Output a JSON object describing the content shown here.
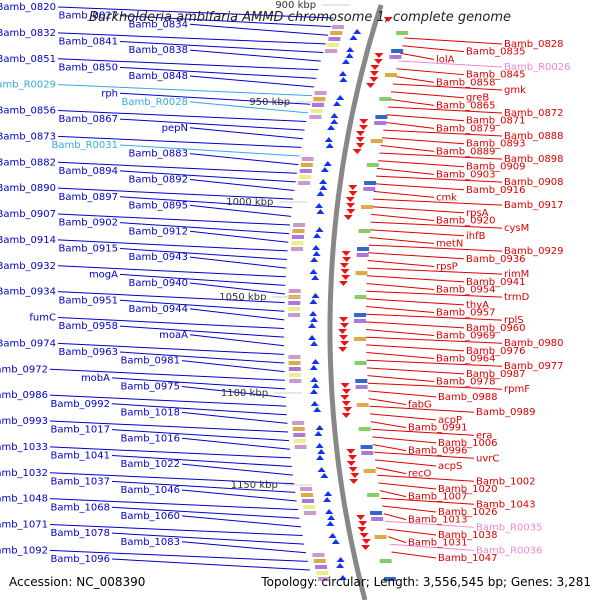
{
  "title": "Burkholderia ambifaria AMMD chromosome 1, complete genome",
  "footer": {
    "accession": "Accession: NC_008390",
    "topology": "Topology: circular; Length: 3,556,545 bp; Genes: 3,281"
  },
  "colors": {
    "left_gene": "#0000cc",
    "right_gene": "#dd0000",
    "left_rna": "#33aadd",
    "right_rna": "#ee88cc",
    "backbone": "#888888"
  },
  "scale_labels": [
    "900 kbp",
    "950 kbp",
    "1000 kbp",
    "1050 kbp",
    "1100 kbp",
    "1150 kbp"
  ],
  "left_labels": [
    {
      "text": "Bamb_0820",
      "type": "gene"
    },
    {
      "text": "Bamb_0827",
      "type": "gene"
    },
    {
      "text": "Bamb_0834",
      "type": "gene"
    },
    {
      "text": "Bamb_0832",
      "type": "gene"
    },
    {
      "text": "Bamb_0841",
      "type": "gene"
    },
    {
      "text": "Bamb_0838",
      "type": "gene"
    },
    {
      "text": "Bamb_0851",
      "type": "gene"
    },
    {
      "text": "Bamb_0850",
      "type": "gene"
    },
    {
      "text": "Bamb_0848",
      "type": "gene"
    },
    {
      "text": "Bamb_R0029",
      "type": "rna"
    },
    {
      "text": "rph",
      "type": "gene"
    },
    {
      "text": "Bamb_R0028",
      "type": "rna"
    },
    {
      "text": "Bamb_0856",
      "type": "gene"
    },
    {
      "text": "Bamb_0867",
      "type": "gene"
    },
    {
      "text": "pepN",
      "type": "gene"
    },
    {
      "text": "Bamb_0873",
      "type": "gene"
    },
    {
      "text": "Bamb_R0031",
      "type": "rna"
    },
    {
      "text": "Bamb_0883",
      "type": "gene"
    },
    {
      "text": "Bamb_0882",
      "type": "gene"
    },
    {
      "text": "Bamb_0894",
      "type": "gene"
    },
    {
      "text": "Bamb_0892",
      "type": "gene"
    },
    {
      "text": "Bamb_0890",
      "type": "gene"
    },
    {
      "text": "Bamb_0897",
      "type": "gene"
    },
    {
      "text": "Bamb_0895",
      "type": "gene"
    },
    {
      "text": "Bamb_0907",
      "type": "gene"
    },
    {
      "text": "Bamb_0902",
      "type": "gene"
    },
    {
      "text": "Bamb_0912",
      "type": "gene"
    },
    {
      "text": "Bamb_0914",
      "type": "gene"
    },
    {
      "text": "Bamb_0915",
      "type": "gene"
    },
    {
      "text": "Bamb_0943",
      "type": "gene"
    },
    {
      "text": "Bamb_0932",
      "type": "gene"
    },
    {
      "text": "mogA",
      "type": "gene"
    },
    {
      "text": "Bamb_0940",
      "type": "gene"
    },
    {
      "text": "Bamb_0934",
      "type": "gene"
    },
    {
      "text": "Bamb_0951",
      "type": "gene"
    },
    {
      "text": "Bamb_0944",
      "type": "gene"
    },
    {
      "text": "fumC",
      "type": "gene"
    },
    {
      "text": "Bamb_0958",
      "type": "gene"
    },
    {
      "text": "moaA",
      "type": "gene"
    },
    {
      "text": "Bamb_0974",
      "type": "gene"
    },
    {
      "text": "Bamb_0963",
      "type": "gene"
    },
    {
      "text": "Bamb_0981",
      "type": "gene"
    },
    {
      "text": "Bamb_0972",
      "type": "gene"
    },
    {
      "text": "mobA",
      "type": "gene"
    },
    {
      "text": "Bamb_0975",
      "type": "gene"
    },
    {
      "text": "Bamb_0986",
      "type": "gene"
    },
    {
      "text": "Bamb_0992",
      "type": "gene"
    },
    {
      "text": "Bamb_1018",
      "type": "gene"
    },
    {
      "text": "Bamb_0993",
      "type": "gene"
    },
    {
      "text": "Bamb_1017",
      "type": "gene"
    },
    {
      "text": "Bamb_1016",
      "type": "gene"
    },
    {
      "text": "Bamb_1033",
      "type": "gene"
    },
    {
      "text": "Bamb_1041",
      "type": "gene"
    },
    {
      "text": "Bamb_1022",
      "type": "gene"
    },
    {
      "text": "Bamb_1032",
      "type": "gene"
    },
    {
      "text": "Bamb_1037",
      "type": "gene"
    },
    {
      "text": "Bamb_1046",
      "type": "gene"
    },
    {
      "text": "Bamb_1048",
      "type": "gene"
    },
    {
      "text": "Bamb_1068",
      "type": "gene"
    },
    {
      "text": "Bamb_1060",
      "type": "gene"
    },
    {
      "text": "Bamb_1071",
      "type": "gene"
    },
    {
      "text": "Bamb_1078",
      "type": "gene"
    },
    {
      "text": "Bamb_1083",
      "type": "gene"
    },
    {
      "text": "Bamb_1092",
      "type": "gene"
    },
    {
      "text": "Bamb_1096",
      "type": "gene"
    }
  ],
  "right_labels": [
    {
      "text": "Bamb_0828",
      "type": "gene"
    },
    {
      "text": "Bamb_0835",
      "type": "gene"
    },
    {
      "text": "lolA",
      "type": "gene"
    },
    {
      "text": "Bamb_R0026",
      "type": "rna"
    },
    {
      "text": "Bamb_0845",
      "type": "gene"
    },
    {
      "text": "Bamb_0858",
      "type": "gene"
    },
    {
      "text": "gmk",
      "type": "gene"
    },
    {
      "text": "greB",
      "type": "gene"
    },
    {
      "text": "Bamb_0865",
      "type": "gene"
    },
    {
      "text": "Bamb_0872",
      "type": "gene"
    },
    {
      "text": "Bamb_0871",
      "type": "gene"
    },
    {
      "text": "Bamb_0879",
      "type": "gene"
    },
    {
      "text": "Bamb_0888",
      "type": "gene"
    },
    {
      "text": "Bamb_0893",
      "type": "gene"
    },
    {
      "text": "Bamb_0889",
      "type": "gene"
    },
    {
      "text": "Bamb_0898",
      "type": "gene"
    },
    {
      "text": "Bamb_0909",
      "type": "gene"
    },
    {
      "text": "Bamb_0903",
      "type": "gene"
    },
    {
      "text": "Bamb_0908",
      "type": "gene"
    },
    {
      "text": "Bamb_0916",
      "type": "gene"
    },
    {
      "text": "cmk",
      "type": "gene"
    },
    {
      "text": "Bamb_0917",
      "type": "gene"
    },
    {
      "text": "rpsA",
      "type": "gene"
    },
    {
      "text": "Bamb_0920",
      "type": "gene"
    },
    {
      "text": "cysM",
      "type": "gene"
    },
    {
      "text": "ihfB",
      "type": "gene"
    },
    {
      "text": "metN",
      "type": "gene"
    },
    {
      "text": "Bamb_0929",
      "type": "gene"
    },
    {
      "text": "Bamb_0936",
      "type": "gene"
    },
    {
      "text": "rpsP",
      "type": "gene"
    },
    {
      "text": "rimM",
      "type": "gene"
    },
    {
      "text": "Bamb_0941",
      "type": "gene"
    },
    {
      "text": "Bamb_0954",
      "type": "gene"
    },
    {
      "text": "trmD",
      "type": "gene"
    },
    {
      "text": "thyA",
      "type": "gene"
    },
    {
      "text": "Bamb_0957",
      "type": "gene"
    },
    {
      "text": "rplS",
      "type": "gene"
    },
    {
      "text": "Bamb_0960",
      "type": "gene"
    },
    {
      "text": "Bamb_0969",
      "type": "gene"
    },
    {
      "text": "Bamb_0980",
      "type": "gene"
    },
    {
      "text": "Bamb_0976",
      "type": "gene"
    },
    {
      "text": "Bamb_0964",
      "type": "gene"
    },
    {
      "text": "Bamb_0977",
      "type": "gene"
    },
    {
      "text": "Bamb_0987",
      "type": "gene"
    },
    {
      "text": "Bamb_0978",
      "type": "gene"
    },
    {
      "text": "rpmF",
      "type": "gene"
    },
    {
      "text": "Bamb_0988",
      "type": "gene"
    },
    {
      "text": "fabG",
      "type": "gene"
    },
    {
      "text": "Bamb_0989",
      "type": "gene"
    },
    {
      "text": "acpP",
      "type": "gene"
    },
    {
      "text": "Bamb_0991",
      "type": "gene"
    },
    {
      "text": "era",
      "type": "gene"
    },
    {
      "text": "Bamb_1006",
      "type": "gene"
    },
    {
      "text": "Bamb_0996",
      "type": "gene"
    },
    {
      "text": "uvrC",
      "type": "gene"
    },
    {
      "text": "acpS",
      "type": "gene"
    },
    {
      "text": "recO",
      "type": "gene"
    },
    {
      "text": "Bamb_1002",
      "type": "gene"
    },
    {
      "text": "Bamb_1020",
      "type": "gene"
    },
    {
      "text": "Bamb_1007",
      "type": "gene"
    },
    {
      "text": "Bamb_1043",
      "type": "gene"
    },
    {
      "text": "Bamb_1026",
      "type": "gene"
    },
    {
      "text": "Bamb_1013",
      "type": "gene"
    },
    {
      "text": "Bamb_R0035",
      "type": "rna"
    },
    {
      "text": "Bamb_1038",
      "type": "gene"
    },
    {
      "text": "Bamb_1031",
      "type": "gene"
    },
    {
      "text": "Bamb_R0036",
      "type": "rna"
    },
    {
      "text": "Bamb_1047",
      "type": "gene"
    }
  ]
}
